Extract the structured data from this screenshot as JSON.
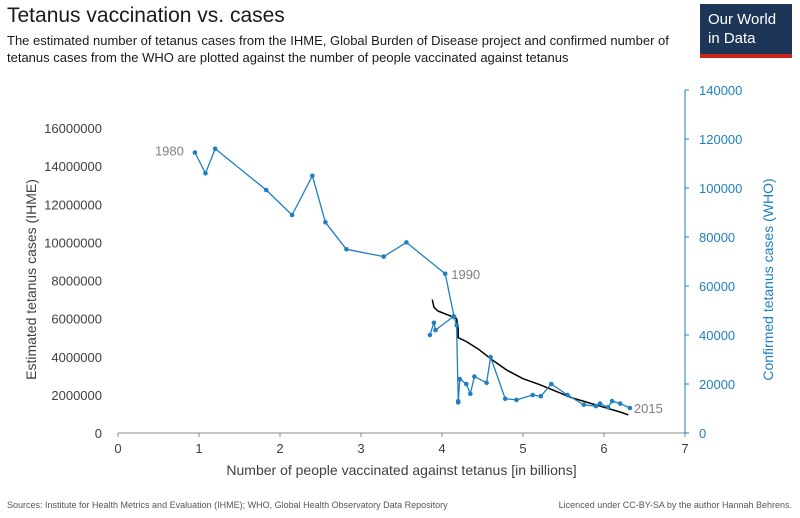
{
  "header": {
    "title": "Tetanus vaccination vs. cases",
    "subtitle": "The estimated number of tetanus cases from the IHME, Global Burden of Disease project and confirmed number of tetanus cases from the WHO are plotted against the number of people vaccinated against tetanus"
  },
  "logo": {
    "line1": "Our World",
    "line2": "in Data"
  },
  "footer": {
    "sources": "Sources: Institute for Health Metrics and Evaluation (IHME); WHO, Global Health Observatory Data Repository",
    "license": "Licenced under CC-BY-SA by the author Hannah Behrens."
  },
  "colors": {
    "ihme": "#000000",
    "who": "#1f7fc0",
    "axis_left": "#333333",
    "axis_right": "#1f7fc0",
    "annotation": "#7f7f7f"
  },
  "chart_data": {
    "type": "line",
    "xlabel": "Number of people vaccinated against tetanus [in billions]",
    "ylabel": "Estimated tetanus cases (IHME)",
    "y2label": "Confirmed tetanus cases (WHO)",
    "xlim": [
      0,
      7
    ],
    "ylim": [
      0,
      18000000
    ],
    "y2lim": [
      0,
      140000
    ],
    "xticks": [
      "0",
      "1",
      "2",
      "3",
      "4",
      "5",
      "6",
      "7"
    ],
    "yticks": [
      "0",
      "2000000",
      "4000000",
      "6000000",
      "8000000",
      "10000000",
      "12000000",
      "14000000",
      "16000000"
    ],
    "y2ticks": [
      "0",
      "20000",
      "40000",
      "60000",
      "80000",
      "100000",
      "120000",
      "140000"
    ],
    "series": [
      {
        "axis": "left",
        "points": [
          [
            3.88,
            7000000.0
          ],
          [
            3.9,
            6600000.0
          ],
          [
            3.95,
            6400000.0
          ],
          [
            4.1,
            6150000.0
          ],
          [
            4.18,
            6000000.0
          ],
          [
            4.2,
            5500000.0
          ],
          [
            4.2,
            5000000.0
          ],
          [
            4.3,
            4800000.0
          ],
          [
            4.45,
            4400000.0
          ],
          [
            4.6,
            3900000.0
          ],
          [
            4.8,
            3300000.0
          ],
          [
            5.0,
            2850000.0
          ],
          [
            5.2,
            2550000.0
          ],
          [
            5.4,
            2200000.0
          ],
          [
            5.6,
            1850000.0
          ],
          [
            5.8,
            1600000.0
          ],
          [
            6.0,
            1350000.0
          ],
          [
            6.2,
            1100000.0
          ],
          [
            6.3,
            950000.0
          ]
        ]
      },
      {
        "axis": "right",
        "points": [
          [
            0.95,
            114500
          ],
          [
            1.08,
            106000
          ],
          [
            1.2,
            116000
          ],
          [
            1.83,
            99200
          ],
          [
            2.15,
            89000
          ],
          [
            2.4,
            105000
          ],
          [
            2.56,
            86000
          ],
          [
            2.82,
            75000
          ],
          [
            3.28,
            72000
          ],
          [
            3.56,
            77800
          ],
          [
            4.04,
            65000
          ],
          [
            4.15,
            47500
          ],
          [
            4.18,
            44000
          ],
          [
            4.2,
            13000
          ],
          [
            4.2,
            12500
          ],
          [
            4.22,
            22000
          ],
          [
            4.3,
            20000
          ],
          [
            4.35,
            16000
          ],
          [
            4.4,
            23000
          ],
          [
            4.55,
            20500
          ],
          [
            4.6,
            31000
          ],
          [
            4.78,
            14000
          ],
          [
            4.92,
            13500
          ],
          [
            5.12,
            15500
          ],
          [
            5.22,
            15000
          ],
          [
            5.35,
            20000
          ],
          [
            5.55,
            15500
          ],
          [
            5.75,
            11500
          ],
          [
            5.9,
            11000
          ],
          [
            5.95,
            12000
          ],
          [
            6.05,
            10500
          ],
          [
            6.1,
            13000
          ],
          [
            6.2,
            12000
          ],
          [
            6.32,
            10200
          ]
        ]
      }
    ],
    "extra_segments": [
      {
        "axis": "right",
        "points": [
          [
            3.85,
            40000
          ],
          [
            3.9,
            45000
          ],
          [
            3.92,
            42000
          ],
          [
            4.14,
            47500
          ]
        ]
      }
    ],
    "annotations": [
      {
        "text": "1980",
        "x": 0.95,
        "y": 114500,
        "axis": "right"
      },
      {
        "text": "1990",
        "x": 4.04,
        "y": 65000,
        "axis": "right"
      },
      {
        "text": "2015",
        "x": 6.32,
        "y": 10200,
        "axis": "right"
      }
    ]
  }
}
